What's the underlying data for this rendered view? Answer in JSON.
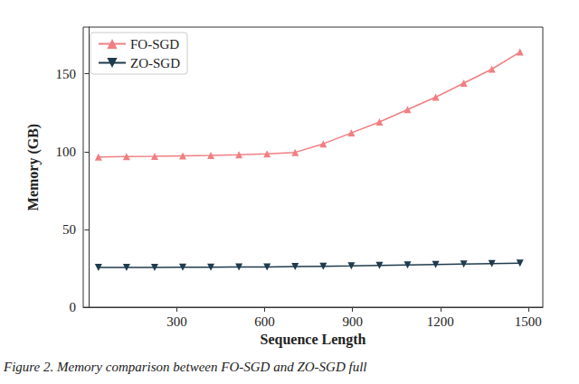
{
  "chart_data": {
    "type": "line",
    "caption": "Figure 2. Memory comparison between FO-SGD and ZO-SGD full",
    "x_label": "Sequence Length",
    "y_label": "Memory (GB)",
    "x": [
      32,
      128,
      224,
      320,
      416,
      512,
      608,
      704,
      800,
      896,
      992,
      1088,
      1184,
      1280,
      1376,
      1472
    ],
    "series": [
      {
        "name": "FO-SGD",
        "color": "#f07f82",
        "marker": "triangle",
        "line_style": "solid",
        "values": [
          96.5,
          96.8,
          97.0,
          97.3,
          97.6,
          98.0,
          98.6,
          99.5,
          105,
          112,
          119,
          127,
          135,
          144,
          153,
          164
        ]
      },
      {
        "name": "ZO-SGD",
        "color": "#1f3b4d",
        "marker": "triangle-down",
        "line_style": "solid",
        "values": [
          25.5,
          25.5,
          25.6,
          25.7,
          25.7,
          25.8,
          25.9,
          26.1,
          26.3,
          26.5,
          26.8,
          27.1,
          27.4,
          27.7,
          28.0,
          28.3
        ]
      }
    ],
    "xlim": [
      -20,
      1550
    ],
    "xticks": [
      300,
      600,
      900,
      1200,
      1500
    ],
    "ylim": [
      0,
      180
    ],
    "yticks": [
      0,
      50,
      100,
      150
    ],
    "grid": false,
    "legend": "upper left"
  }
}
